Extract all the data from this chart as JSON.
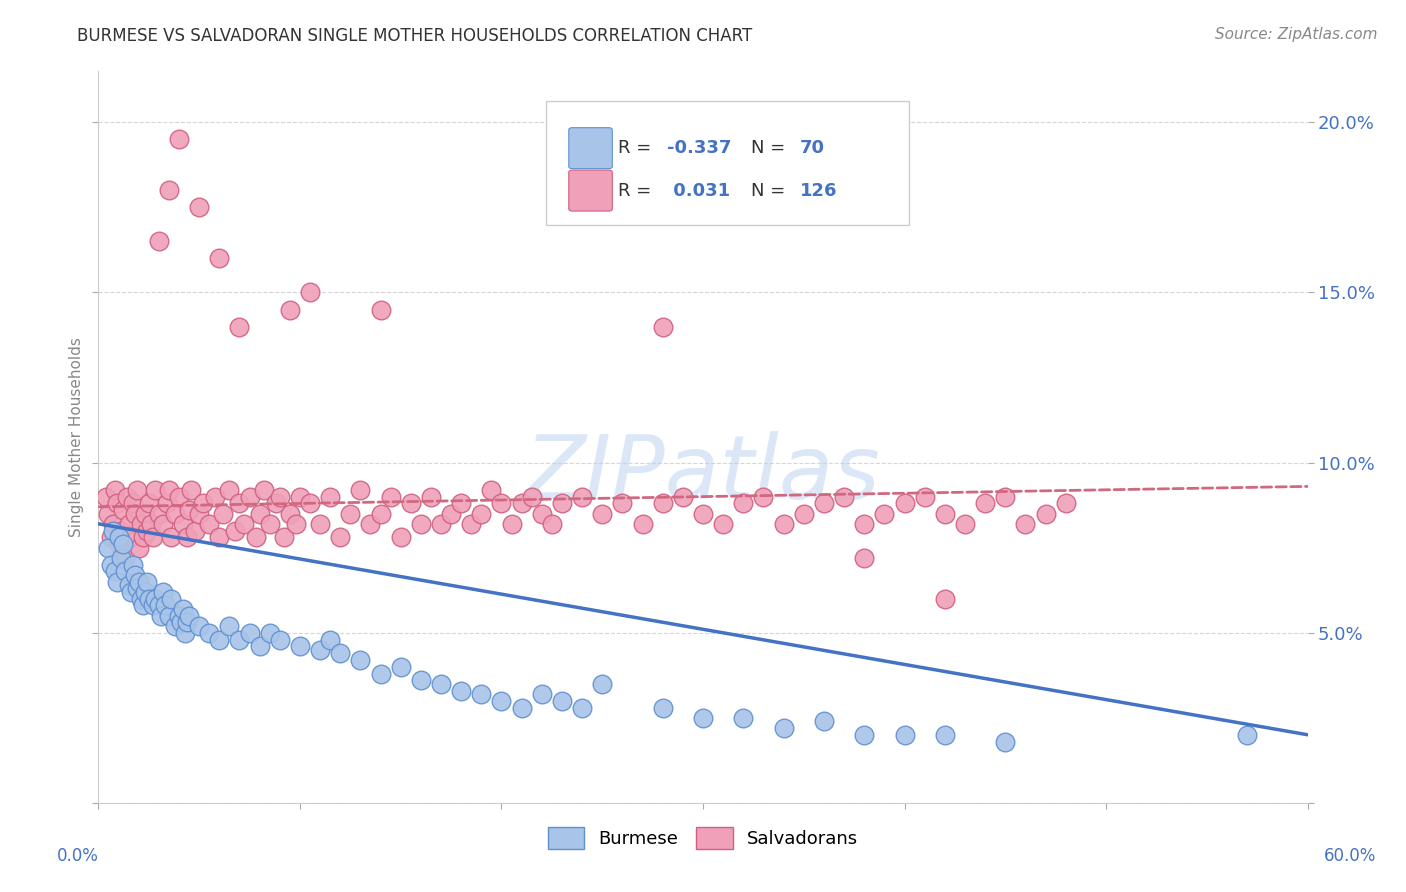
{
  "title": "BURMESE VS SALVADORAN SINGLE MOTHER HOUSEHOLDS CORRELATION CHART",
  "source": "Source: ZipAtlas.com",
  "ylabel": "Single Mother Households",
  "ytick_vals": [
    0.0,
    0.05,
    0.1,
    0.15,
    0.2
  ],
  "ytick_labels": [
    "",
    "5.0%",
    "10.0%",
    "15.0%",
    "20.0%"
  ],
  "xlim": [
    0.0,
    0.6
  ],
  "ylim": [
    0.0,
    0.215
  ],
  "legend_blue_r": "-0.337",
  "legend_blue_n": "70",
  "legend_pink_r": "0.031",
  "legend_pink_n": "126",
  "blue_scatter_color": "#A8C4E8",
  "blue_scatter_edge": "#6090D0",
  "pink_scatter_color": "#F0A0B8",
  "pink_scatter_edge": "#D06080",
  "blue_line_color": "#4472C4",
  "pink_line_color": "#D06880",
  "blue_line_start_y": 0.082,
  "blue_line_end_y": 0.02,
  "pink_line_start_y": 0.087,
  "pink_line_end_y": 0.093,
  "watermark_text": "ZIPatlas",
  "grid_color": "#CCCCCC",
  "right_tick_color": "#4472C4",
  "title_color": "#333333",
  "source_color": "#888888"
}
